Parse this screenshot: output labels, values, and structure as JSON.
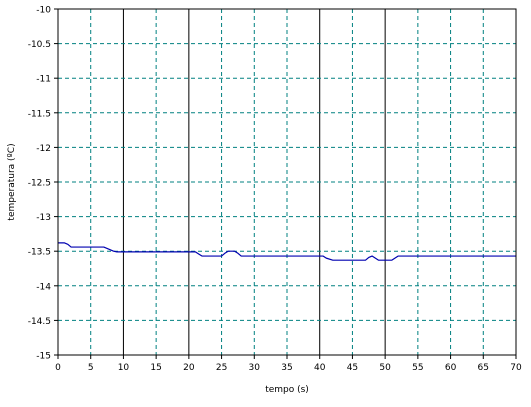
{
  "chart_data": {
    "type": "line",
    "xlabel": "tempo (s)",
    "ylabel": "temperatura (ºC)",
    "xlim": [
      0,
      70
    ],
    "ylim": [
      -15,
      -10
    ],
    "xticks": [
      0,
      5,
      10,
      15,
      20,
      25,
      30,
      35,
      40,
      45,
      50,
      55,
      60,
      65,
      70
    ],
    "xtick_labels": [
      "0",
      "5",
      "10",
      "15",
      "20",
      "25",
      "30",
      "35",
      "40",
      "45",
      "50",
      "55",
      "60",
      "65",
      "70"
    ],
    "yticks": [
      -10,
      -10.5,
      -11,
      -11.5,
      -12,
      -12.5,
      -13,
      -13.5,
      -14,
      -14.5,
      -15
    ],
    "ytick_labels": [
      "-10",
      "-10.5",
      "-11",
      "-11.5",
      "-12",
      "-12.5",
      "-13",
      "-13.5",
      "-14",
      "-14.5",
      "-15"
    ],
    "grid": true,
    "solid_vertical_lines_at_x": [
      10,
      20,
      40,
      50
    ],
    "colors": {
      "line": "#0000b0",
      "grid": "#008080",
      "solid_grid": "#000000",
      "frame": "#000000"
    },
    "series": [
      {
        "x": [
          0,
          1,
          1.5,
          2,
          3,
          6,
          7,
          8,
          8.5,
          9,
          10,
          15,
          20,
          21,
          21.5,
          22,
          25,
          25.5,
          26,
          27,
          27.5,
          28,
          30,
          35,
          40,
          40.5,
          41,
          42,
          45,
          47,
          47.5,
          48,
          48.5,
          49,
          50,
          51,
          51.5,
          52,
          55,
          60,
          65,
          70
        ],
        "y": [
          -13.38,
          -13.38,
          -13.4,
          -13.44,
          -13.44,
          -13.44,
          -13.44,
          -13.48,
          -13.5,
          -13.51,
          -13.51,
          -13.51,
          -13.51,
          -13.51,
          -13.54,
          -13.57,
          -13.57,
          -13.53,
          -13.5,
          -13.5,
          -13.53,
          -13.57,
          -13.57,
          -13.57,
          -13.57,
          -13.57,
          -13.6,
          -13.63,
          -13.63,
          -13.63,
          -13.59,
          -13.57,
          -13.6,
          -13.63,
          -13.63,
          -13.63,
          -13.6,
          -13.57,
          -13.57,
          -13.57,
          -13.57,
          -13.57
        ]
      }
    ]
  }
}
